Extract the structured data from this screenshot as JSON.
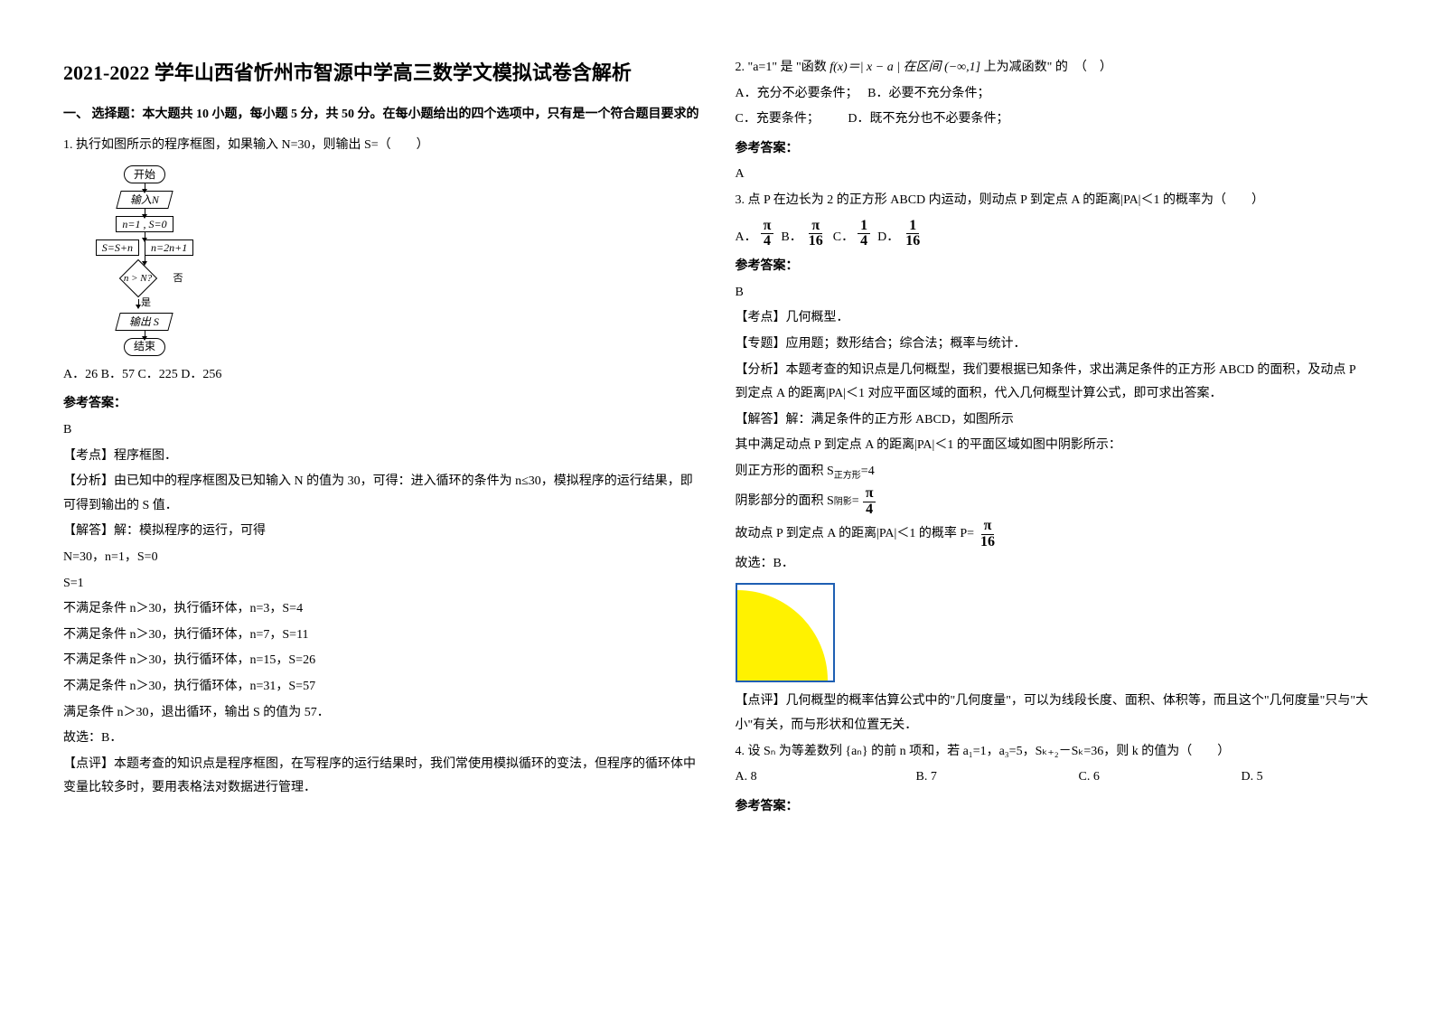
{
  "title": "2021-2022 学年山西省忻州市智源中学高三数学文模拟试卷含解析",
  "section1_head": "一、 选择题：本大题共 10 小题，每小题 5 分，共 50 分。在每小题给出的四个选项中，只有是一个符合题目要求的",
  "q1": {
    "stem": "1. 执行如图所示的程序框图，如果输入 N=30，则输出 S=（　　）",
    "fc": {
      "start": "开始",
      "input": "输入N",
      "init": "n=1 , S=0",
      "step_s": "S=S+n",
      "step_n": "n=2n+1",
      "cond": "n > N?",
      "no": "否",
      "yes": "是",
      "output": "输出 S",
      "end": "结束"
    },
    "opts": "A．26  B．57  C．225 D．256",
    "ans_label": "参考答案：",
    "ans": "B",
    "expl_head_kd": "【考点】程序框图．",
    "expl_head_fx": "【分析】由已知中的程序框图及已知输入 N 的值为 30，可得：进入循环的条件为 n≤30，模拟程序的运行结果，即可得到输出的 S 值．",
    "expl_head_jf": "【解答】解：模拟程序的运行，可得",
    "lines": [
      "N=30，n=1，S=0",
      "S=1",
      "不满足条件 n＞30，执行循环体，n=3，S=4",
      "不满足条件 n＞30，执行循环体，n=7，S=11",
      "不满足条件 n＞30，执行循环体，n=15，S=26",
      "不满足条件 n＞30，执行循环体，n=31，S=57",
      "满足条件 n＞30，退出循环，输出 S 的值为 57．",
      "故选：B．"
    ],
    "dp": "【点评】本题考查的知识点是程序框图，在写程序的运行结果时，我们常使用模拟循环的变法，但程序的循环体中变量比较多时，要用表格法对数据进行管理．"
  },
  "q2": {
    "stem_pre": "2. \"a=1\" 是 \"函数",
    "stem_func": "f(x)＝| x − a | 在区间",
    "stem_int": "(−∞,1]",
    "stem_post": "上为减函数\" 的　（　）",
    "optA": "A．充分不必要条件；",
    "optB": "B．必要不充分条件；",
    "optC": "C．充要条件；",
    "optD": "D．既不充分也不必要条件；",
    "ans_label": "参考答案：",
    "ans": "A"
  },
  "q3": {
    "stem": "3. 点 P 在边长为 2 的正方形 ABCD 内运动，则动点 P 到定点 A 的距离|PA|＜1 的概率为（　　）",
    "opts": {
      "A": "A．",
      "B": "B．",
      "C": "C．",
      "D": "D．",
      "Av": {
        "n": "π",
        "d": "4"
      },
      "Bv": {
        "n": "π",
        "d": "16"
      },
      "Cv": {
        "n": "1",
        "d": "4"
      },
      "Dv": {
        "n": "1",
        "d": "16"
      }
    },
    "ans_label": "参考答案：",
    "ans": "B",
    "kd": "【考点】几何概型．",
    "zt": "【专题】应用题；数形结合；综合法；概率与统计．",
    "fx": "【分析】本题考查的知识点是几何概型，我们要根据已知条件，求出满足条件的正方形 ABCD 的面积，及动点 P 到定点 A 的距离|PA|＜1 对应平面区域的面积，代入几何概型计算公式，即可求出答案．",
    "jf1": "【解答】解：满足条件的正方形 ABCD，如图所示",
    "jf2": "其中满足动点 P 到定点 A 的距离|PA|＜1 的平面区域如图中阴影所示：",
    "jf3_pre": "则正方形的面积 S",
    "jf3_sub": "正方形",
    "jf3_post": "=4",
    "jf4_pre": "阴影部分的面积 S",
    "jf4_sub": "阴影",
    "jf4_post": "= ",
    "jf4_frac": {
      "n": "π",
      "d": "4"
    },
    "jf5_pre": "故动点 P 到定点 A 的距离|PA|＜1 的概率 P= ",
    "jf5_frac": {
      "n": "π",
      "d": "16"
    },
    "jf6": "故选：B．",
    "dp": "【点评】几何概型的概率估算公式中的\"几何度量\"，可以为线段长度、面积、体积等，而且这个\"几何度量\"只与\"大小\"有关，而与形状和位置无关．"
  },
  "q4": {
    "stem": "4. 设 Sₙ 为等差数列 {aₙ} 的前 n 项和，若 a₁=1，a₃=5，Sₖ₊₂－Sₖ=36，则 k 的值为（　　）",
    "A": "A. 8",
    "B": "B. 7",
    "C": "C. 6",
    "D": "D. 5",
    "ans_label": "参考答案："
  }
}
